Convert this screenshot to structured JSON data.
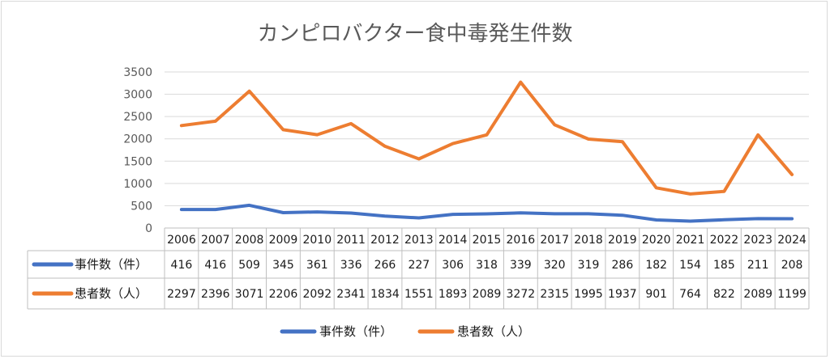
{
  "chart_data": {
    "type": "line",
    "title": "カンピロバクター食中毒発生件数",
    "categories": [
      "2006",
      "2007",
      "2008",
      "2009",
      "2010",
      "2011",
      "2012",
      "2013",
      "2014",
      "2015",
      "2016",
      "2017",
      "2018",
      "2019",
      "2020",
      "2021",
      "2022",
      "2023",
      "2024"
    ],
    "series": [
      {
        "name": "事件数（件）",
        "color": "#4472c4",
        "values": [
          416,
          416,
          509,
          345,
          361,
          336,
          266,
          227,
          306,
          318,
          339,
          320,
          319,
          286,
          182,
          154,
          185,
          211,
          208
        ]
      },
      {
        "name": "患者数（人）",
        "color": "#ed7d31",
        "values": [
          2297,
          2396,
          3071,
          2206,
          2092,
          2341,
          1834,
          1551,
          1893,
          2089,
          3272,
          2315,
          1995,
          1937,
          901,
          764,
          822,
          2089,
          1199
        ]
      }
    ],
    "yticks": [
      "0",
      "500",
      "1000",
      "1500",
      "2000",
      "2500",
      "3000",
      "3500"
    ],
    "ylim": [
      0,
      3500
    ],
    "grid": true,
    "data_table": true,
    "legend_position": "bottom"
  }
}
